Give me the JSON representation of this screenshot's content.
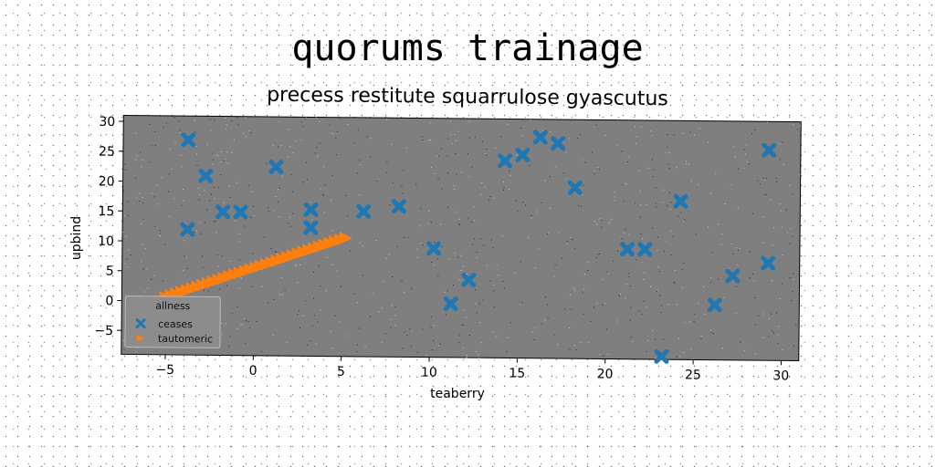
{
  "chart_data": {
    "type": "scatter",
    "title": "quorums trainage",
    "subtitle": "precess restitute squarrulose gyascutus",
    "xlabel": "teaberry",
    "ylabel": "upbind",
    "xlim": [
      -7.5,
      31
    ],
    "ylim": [
      -9,
      31
    ],
    "xticks": [
      -5,
      0,
      5,
      10,
      15,
      20,
      25,
      30
    ],
    "yticks": [
      -5,
      0,
      5,
      10,
      15,
      20,
      25,
      30
    ],
    "grid": false,
    "legend": {
      "title": "allness",
      "position": "lower-left"
    },
    "series": [
      {
        "name": "ceases",
        "marker": "x",
        "color": "#1f77b4",
        "points": [
          [
            -3.8,
            27
          ],
          [
            -2.8,
            21
          ],
          [
            -3.8,
            12
          ],
          [
            -1.8,
            15
          ],
          [
            -0.8,
            15
          ],
          [
            1.2,
            22.6
          ],
          [
            3.2,
            15.5
          ],
          [
            3.2,
            12.5
          ],
          [
            6.2,
            15.3
          ],
          [
            8.2,
            16.2
          ],
          [
            10.2,
            9.2
          ],
          [
            11.2,
            0
          ],
          [
            12.2,
            4
          ],
          [
            14.2,
            24
          ],
          [
            15.2,
            25
          ],
          [
            16.2,
            28
          ],
          [
            17.2,
            27
          ],
          [
            18.2,
            19.6
          ],
          [
            21.2,
            9.4
          ],
          [
            22.2,
            9.4
          ],
          [
            23.2,
            -8.5
          ],
          [
            24.2,
            17.5
          ],
          [
            26.2,
            0.2
          ],
          [
            27.2,
            5.1
          ],
          [
            29.2,
            26.2
          ],
          [
            29.2,
            7.3
          ]
        ]
      },
      {
        "name": "tautomeric",
        "marker": ">",
        "color": "#ff7f0e",
        "points": [
          [
            -5,
            0.6
          ],
          [
            -4.7,
            0.9
          ],
          [
            -4.4,
            1.2
          ],
          [
            -4.1,
            1.5
          ],
          [
            -3.8,
            1.8
          ],
          [
            -3.5,
            2.1
          ],
          [
            -3.2,
            2.4
          ],
          [
            -2.9,
            2.7
          ],
          [
            -2.6,
            3.0
          ],
          [
            -2.3,
            3.3
          ],
          [
            -2.0,
            3.6
          ],
          [
            -1.7,
            3.9
          ],
          [
            -1.4,
            4.2
          ],
          [
            -1.1,
            4.5
          ],
          [
            -0.8,
            4.8
          ],
          [
            -0.5,
            5.1
          ],
          [
            -0.2,
            5.4
          ],
          [
            0.1,
            5.7
          ],
          [
            0.4,
            6.0
          ],
          [
            0.7,
            6.3
          ],
          [
            1.0,
            6.6
          ],
          [
            1.3,
            6.9
          ],
          [
            1.6,
            7.2
          ],
          [
            1.9,
            7.5
          ],
          [
            2.2,
            7.8
          ],
          [
            2.5,
            8.1
          ],
          [
            2.8,
            8.4
          ],
          [
            3.1,
            8.7
          ],
          [
            3.4,
            9.0
          ],
          [
            3.7,
            9.3
          ],
          [
            4.0,
            9.6
          ],
          [
            4.3,
            9.9
          ],
          [
            4.6,
            10.2
          ],
          [
            4.9,
            10.5
          ],
          [
            5.2,
            10.8
          ]
        ]
      }
    ]
  }
}
